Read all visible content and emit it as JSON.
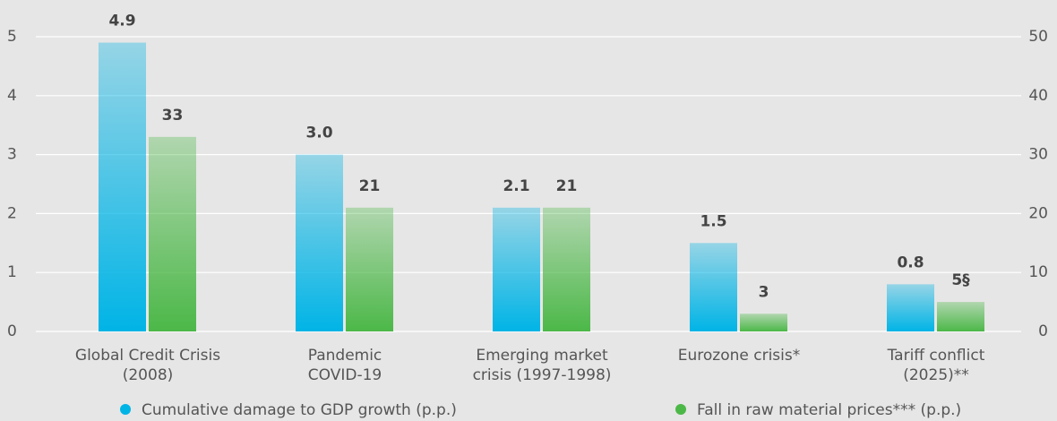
{
  "chart_data": {
    "type": "bar",
    "categories": [
      "Global Credit Crisis\n(2008)",
      "Pandemic\nCOVID-19",
      "Emerging market\ncrisis (1997-1998)",
      "Eurozone crisis*",
      "Tariff conflict\n(2025)**"
    ],
    "series": [
      {
        "name": "Cumulative damage to GDP growth (p.p.)",
        "color": "#00b4e6",
        "values": [
          4.9,
          3.0,
          2.1,
          1.5,
          0.8
        ],
        "value_labels": [
          "4.9",
          "3.0",
          "2.1",
          "1.5",
          "0.8"
        ]
      },
      {
        "name": "Fall in raw material prices*** (p.p.)",
        "color": "#4cb848",
        "axis": "y2",
        "values": [
          33,
          21,
          21,
          3,
          5
        ],
        "value_labels": [
          "33",
          "21",
          "21",
          "3",
          "5§"
        ]
      }
    ],
    "ylim": [
      0,
      5
    ],
    "yticks": [
      0,
      1,
      2,
      3,
      4,
      5
    ],
    "y2lim": [
      0,
      50
    ],
    "y2ticks": [
      0,
      10,
      20,
      30,
      40,
      50
    ],
    "grid": true
  }
}
